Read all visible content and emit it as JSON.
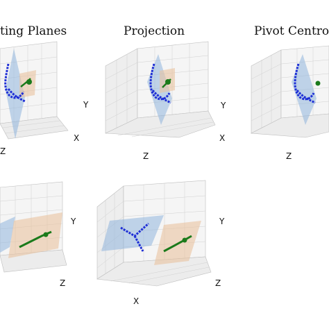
{
  "figure": {
    "titles": [
      "ting Planes",
      "Projection",
      "Pivot Centro"
    ],
    "axis_labels": {
      "x": "X",
      "y": "Y",
      "z": "Z"
    }
  },
  "colors": {
    "trajectory": "#1f2fd6",
    "pivot": "#1b7a1b",
    "plane_blue": "#8fb4dc",
    "plane_orange": "#e9c3a0",
    "pane_back": "#ececec",
    "pane_side": "#f3f3f3",
    "grid": "#c9c9c9"
  }
}
